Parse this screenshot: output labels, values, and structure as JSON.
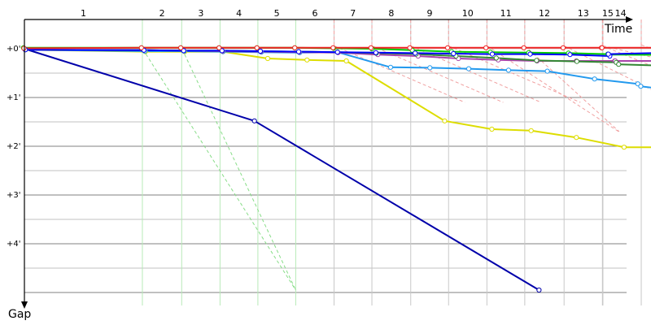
{
  "chart_data": {
    "type": "line",
    "xlabel": "Time",
    "ylabel": "Gap",
    "x_tick_labels": [
      "1",
      "2",
      "3",
      "4",
      "5",
      "6",
      "7",
      "8",
      "9",
      "10",
      "11",
      "12",
      "13",
      "14",
      "15"
    ],
    "y_tick_labels": [
      "+0'",
      "+1'",
      "+2'",
      "+3'",
      "+4'"
    ],
    "grid": true,
    "ylim_minutes": [
      -0.1,
      5.2
    ],
    "lap_end_times_min": [
      0,
      2.4,
      3.2,
      3.98,
      4.75,
      5.52,
      6.3,
      7.07,
      7.86,
      8.63,
      9.41,
      10.18,
      10.98,
      11.76,
      11.77,
      12.55
    ],
    "green_guides": [
      {
        "from": [
          1,
          0.01
        ],
        "to": [
          5.52,
          4.95
        ]
      },
      {
        "from": [
          2,
          0.01
        ],
        "to": [
          5.52,
          4.95
        ]
      }
    ],
    "red_guides": [
      {
        "from": [
          6,
          -0.06
        ],
        "to": [
          9,
          1.1
        ]
      },
      {
        "from": [
          7,
          -0.06
        ],
        "to": [
          10,
          1.1
        ]
      },
      {
        "from": [
          8,
          -0.06
        ],
        "to": [
          11,
          1.1
        ]
      },
      {
        "from": [
          9,
          -0.06
        ],
        "to": [
          12,
          1.1
        ]
      },
      {
        "from": [
          10,
          -0.06
        ],
        "to": [
          13,
          1.7
        ]
      },
      {
        "from": [
          11,
          -0.06
        ],
        "to": [
          14,
          1.7
        ]
      },
      {
        "from": [
          12,
          -0.06
        ],
        "to": [
          15,
          0.9
        ]
      },
      {
        "from": [
          13,
          -0.06
        ],
        "to": [
          15,
          0.4
        ]
      },
      {
        "from": [
          14,
          -0.06
        ],
        "to": [
          15,
          0.2
        ]
      },
      {
        "from": [
          15,
          -0.08
        ],
        "to": [
          15,
          0.05
        ]
      }
    ],
    "series": [
      {
        "color": "#0000aa",
        "laps": [
          0,
          2,
          5
        ],
        "values": [
          0,
          1.48,
          4.95
        ]
      },
      {
        "color": "#dddd00",
        "laps": [
          0,
          1,
          2,
          3,
          4,
          5,
          6,
          7,
          8,
          9,
          10,
          11,
          12,
          13,
          14
        ],
        "values": [
          0.02,
          0.06,
          0.06,
          0.06,
          0.2,
          0.23,
          0.25,
          1.48,
          1.65,
          1.68,
          1.82,
          2.02,
          2.02,
          2.05,
          2.07
        ]
      },
      {
        "color": "#2299ee",
        "laps": [
          0,
          1,
          2,
          3,
          4,
          5,
          6,
          7,
          8,
          9,
          10,
          11,
          12,
          13,
          14
        ],
        "values": [
          0.02,
          0.05,
          0.05,
          0.06,
          0.07,
          0.08,
          0.07,
          0.38,
          0.39,
          0.41,
          0.44,
          0.46,
          0.62,
          0.72,
          0.77
        ]
      },
      {
        "color": "#aa44aa",
        "laps": [
          0,
          1,
          2,
          3,
          4,
          5,
          6,
          7,
          8,
          9,
          10,
          11,
          12,
          13,
          14
        ],
        "values": [
          0.02,
          0.03,
          0.04,
          0.05,
          0.06,
          0.07,
          0.08,
          0.12,
          0.15,
          0.2,
          0.23,
          0.25,
          0.25,
          0.25,
          0.25
        ]
      },
      {
        "color": "#338833",
        "laps": [
          0,
          1,
          2,
          3,
          4,
          5,
          6,
          7,
          8,
          9,
          10,
          11,
          12,
          13,
          14
        ],
        "values": [
          0.02,
          0.03,
          0.04,
          0.04,
          0.05,
          0.06,
          0.07,
          0.09,
          0.11,
          0.15,
          0.19,
          0.24,
          0.26,
          0.28,
          0.32
        ]
      },
      {
        "color": "#00cc00",
        "laps": [
          0,
          1,
          2,
          3,
          4,
          5,
          6,
          7,
          8,
          9,
          10,
          11,
          12,
          13,
          14
        ],
        "values": [
          -0.02,
          -0.02,
          -0.02,
          -0.02,
          -0.02,
          -0.02,
          -0.01,
          0,
          0.03,
          0.06,
          0.07,
          0.08,
          0.09,
          0.11,
          0.12
        ]
      },
      {
        "color": "#0000ff",
        "laps": [
          0,
          1,
          2,
          3,
          4,
          5,
          6,
          7,
          8,
          9,
          10,
          11,
          12,
          13,
          14
        ],
        "values": [
          0.02,
          0.03,
          0.04,
          0.04,
          0.05,
          0.06,
          0.07,
          0.08,
          0.09,
          0.1,
          0.11,
          0.11,
          0.12,
          0.15,
          0.11
        ]
      },
      {
        "color": "#ee2222",
        "laps": [
          0,
          1,
          2,
          3,
          4,
          5,
          6,
          7,
          8,
          9,
          10,
          11,
          12,
          13,
          14
        ],
        "values": [
          -0.01,
          -0.02,
          -0.02,
          -0.02,
          -0.02,
          -0.02,
          -0.02,
          -0.02,
          -0.02,
          -0.02,
          -0.02,
          -0.02,
          -0.02,
          -0.02,
          -0.02
        ]
      }
    ]
  }
}
